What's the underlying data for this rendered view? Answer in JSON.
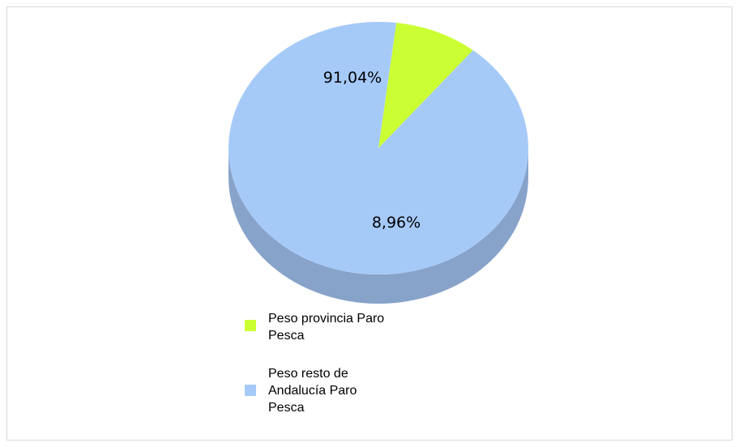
{
  "chart_data": {
    "type": "pie",
    "title": "",
    "three_d": true,
    "categories": [
      "Peso provincia Paro Pesca",
      "Peso resto de Andalucía Paro Pesca"
    ],
    "values": [
      8.96,
      91.04
    ],
    "data_labels": [
      "8,96%",
      "91,04%"
    ],
    "colors": [
      "#ccff33",
      "#a6caf8"
    ],
    "side_colors": [
      "#a3c43a",
      "#87a3ca"
    ],
    "legend_position": "bottom"
  }
}
